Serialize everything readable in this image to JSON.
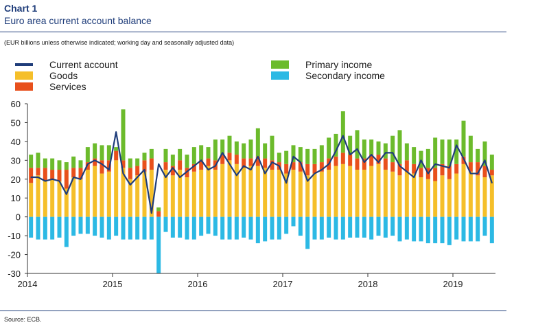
{
  "header": {
    "chart_number": "Chart 1",
    "title": "Euro area current account balance",
    "subtitle": "(EUR billions unless otherwise indicated; working day and seasonally adjusted data)",
    "source": "Source: ECB."
  },
  "colors": {
    "current_account": "#1f3d7a",
    "goods": "#f5bf2a",
    "services": "#e8501c",
    "primary_income": "#6cbb2c",
    "secondary_income": "#2cb9e4",
    "axis": "#333333"
  },
  "chart_data": {
    "type": "bar",
    "stacked": true,
    "ylim": [
      -30,
      60
    ],
    "yticks": [
      60,
      50,
      40,
      30,
      20,
      10,
      0,
      -10,
      -20,
      -30
    ],
    "x_tick_labels": [
      "2014",
      "2015",
      "2016",
      "2017",
      "2018",
      "2019"
    ],
    "x_tick_index": [
      0,
      12,
      24,
      36,
      48,
      60
    ],
    "x_dates": [
      "2014-01",
      "2014-02",
      "2014-03",
      "2014-04",
      "2014-05",
      "2014-06",
      "2014-07",
      "2014-08",
      "2014-09",
      "2014-10",
      "2014-11",
      "2014-12",
      "2015-01",
      "2015-02",
      "2015-03",
      "2015-04",
      "2015-05",
      "2015-06",
      "2015-07",
      "2015-08",
      "2015-09",
      "2015-10",
      "2015-11",
      "2015-12",
      "2016-01",
      "2016-02",
      "2016-03",
      "2016-04",
      "2016-05",
      "2016-06",
      "2016-07",
      "2016-08",
      "2016-09",
      "2016-10",
      "2016-11",
      "2016-12",
      "2017-01",
      "2017-02",
      "2017-03",
      "2017-04",
      "2017-05",
      "2017-06",
      "2017-07",
      "2017-08",
      "2017-09",
      "2017-10",
      "2017-11",
      "2017-12",
      "2018-01",
      "2018-02",
      "2018-03",
      "2018-04",
      "2018-05",
      "2018-06",
      "2018-07",
      "2018-08",
      "2018-09",
      "2018-10",
      "2018-11",
      "2018-12",
      "2019-01",
      "2019-02",
      "2019-03",
      "2019-04",
      "2019-05",
      "2019-06"
    ],
    "legend_position": "top",
    "series": [
      {
        "name": "Goods",
        "key": "goods",
        "kind": "bar",
        "values": [
          18,
          22,
          19,
          20,
          19,
          15,
          21,
          20,
          25,
          27,
          23,
          24,
          30,
          26,
          20,
          22,
          24,
          25,
          0,
          25,
          22,
          25,
          21,
          24,
          25,
          27,
          25,
          28,
          30,
          28,
          26,
          27,
          27,
          26,
          25,
          25,
          23,
          25,
          24,
          22,
          23,
          24,
          25,
          27,
          28,
          27,
          25,
          25,
          27,
          28,
          25,
          24,
          22,
          24,
          23,
          21,
          20,
          19,
          22,
          20,
          23,
          28,
          24,
          22,
          21,
          22
        ]
      },
      {
        "name": "Services",
        "key": "services",
        "kind": "bar",
        "values": [
          8,
          4,
          7,
          5,
          6,
          10,
          5,
          6,
          4,
          4,
          7,
          6,
          5,
          4,
          6,
          5,
          6,
          6,
          3,
          4,
          5,
          5,
          5,
          4,
          5,
          4,
          5,
          5,
          4,
          5,
          5,
          4,
          5,
          5,
          5,
          4,
          5,
          4,
          5,
          6,
          5,
          5,
          6,
          5,
          6,
          6,
          6,
          6,
          6,
          5,
          6,
          5,
          6,
          6,
          5,
          5,
          6,
          7,
          6,
          7,
          5,
          4,
          5,
          7,
          6,
          3
        ]
      },
      {
        "name": "Primary income",
        "key": "primary_income",
        "kind": "bar",
        "values": [
          7,
          8,
          5,
          6,
          5,
          4,
          6,
          4,
          8,
          8,
          8,
          8,
          2,
          27,
          5,
          4,
          4,
          5,
          2,
          7,
          6,
          6,
          7,
          9,
          8,
          6,
          11,
          8,
          9,
          7,
          8,
          10,
          15,
          8,
          13,
          5,
          7,
          9,
          8,
          8,
          8,
          9,
          11,
          12,
          22,
          10,
          15,
          10,
          8,
          7,
          8,
          14,
          18,
          9,
          9,
          9,
          10,
          16,
          13,
          14,
          13,
          19,
          14,
          7,
          13,
          8
        ]
      },
      {
        "name": "Secondary income",
        "key": "secondary_income",
        "kind": "bar",
        "values": [
          -11,
          -12,
          -12,
          -12,
          -11,
          -16,
          -10,
          -9,
          -9,
          -10,
          -11,
          -12,
          -10,
          -12,
          -12,
          -12,
          -12,
          -12,
          -30,
          -8,
          -11,
          -11,
          -12,
          -12,
          -10,
          -9,
          -10,
          -12,
          -12,
          -12,
          -11,
          -12,
          -14,
          -13,
          -12,
          -12,
          -9,
          -5,
          -10,
          -17,
          -12,
          -12,
          -11,
          -12,
          -12,
          -11,
          -11,
          -11,
          -12,
          -10,
          -11,
          -10,
          -13,
          -12,
          -13,
          -13,
          -14,
          -14,
          -14,
          -15,
          -12,
          -13,
          -13,
          -13,
          -10,
          -14
        ]
      },
      {
        "name": "Current account",
        "key": "current_account",
        "kind": "line",
        "values": [
          21,
          21,
          19,
          20,
          19,
          12,
          21,
          20,
          28,
          30,
          28,
          25,
          45,
          23,
          17,
          21,
          25,
          2,
          28,
          21,
          26,
          21,
          24,
          27,
          30,
          25,
          27,
          34,
          28,
          22,
          27,
          25,
          32,
          23,
          29,
          27,
          18,
          32,
          29,
          19,
          23,
          25,
          28,
          35,
          43,
          33,
          36,
          29,
          33,
          29,
          34,
          34,
          27,
          24,
          21,
          30,
          23,
          28,
          27,
          26,
          38,
          31,
          23,
          23,
          30,
          18
        ]
      }
    ]
  }
}
